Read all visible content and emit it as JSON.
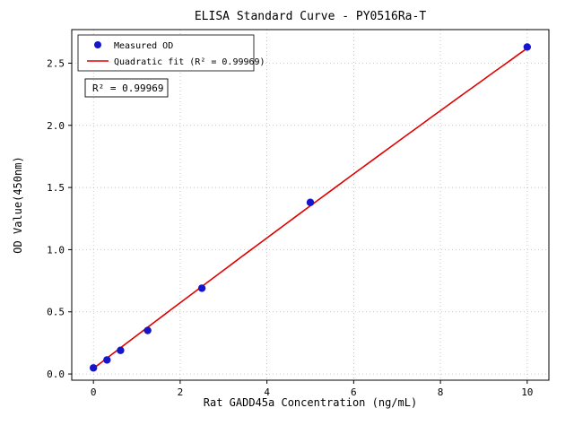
{
  "chart_data": {
    "type": "scatter",
    "title": "ELISA Standard Curve - PY0516Ra-T",
    "xlabel": "Rat GADD45a Concentration (ng/mL)",
    "ylabel": "OD Value(450nm)",
    "xlim": [
      -0.5,
      10.5
    ],
    "ylim": [
      -0.05,
      2.77
    ],
    "xticks": [
      0,
      2,
      4,
      6,
      8,
      10
    ],
    "yticks": [
      0.0,
      0.5,
      1.0,
      1.5,
      2.0,
      2.5
    ],
    "grid": true,
    "grid_color": "#b0b0b0",
    "legend_position": "upper-left",
    "annotation": "R² = 0.99969",
    "series": [
      {
        "name": "Measured OD",
        "type": "scatter",
        "color": "#1515cc",
        "x": [
          0,
          0.3125,
          0.625,
          1.25,
          2.5,
          5,
          10
        ],
        "y": [
          0.049,
          0.113,
          0.19,
          0.35,
          0.69,
          1.38,
          2.63
        ]
      },
      {
        "name": "Quadratic fit (R² = 0.99969)",
        "type": "line",
        "color": "#e00000",
        "fit_coeffs": {
          "a": -0.0008,
          "b": 0.2655,
          "c": 0.045
        },
        "x_range": [
          0,
          10
        ]
      }
    ]
  }
}
